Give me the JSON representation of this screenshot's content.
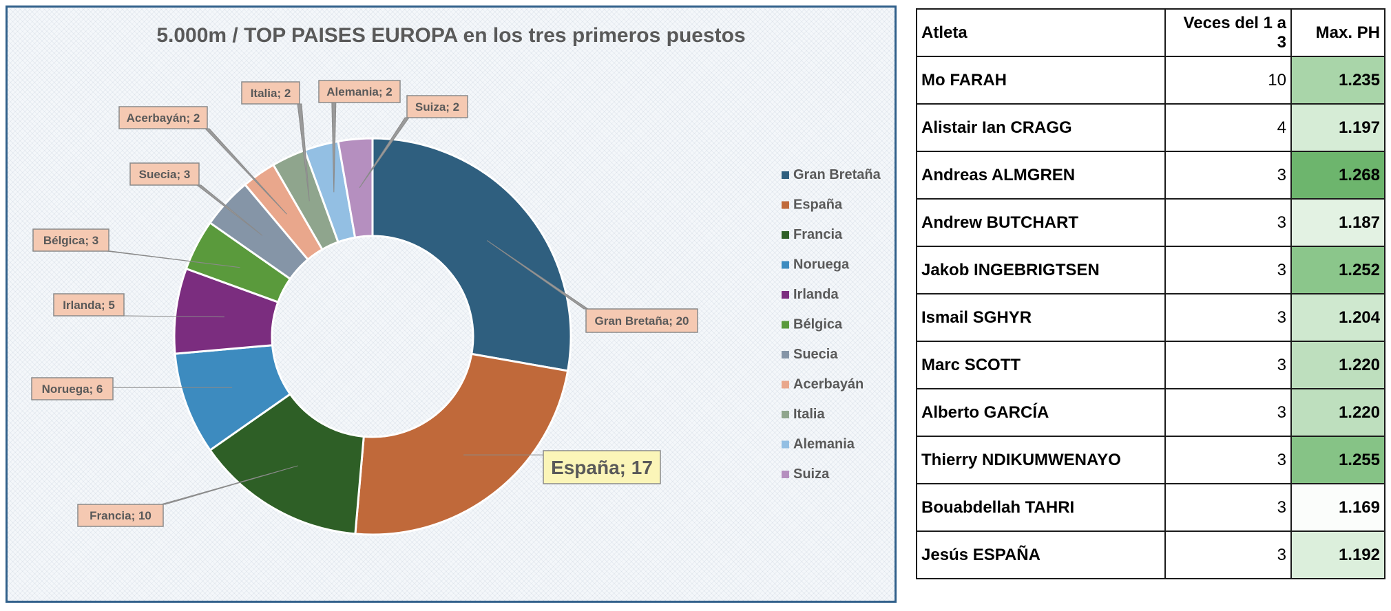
{
  "chart_data": {
    "type": "pie",
    "donut": true,
    "title": "5.000m / TOP  PAISES EUROPA en los tres primeros puestos",
    "legend_position": "right",
    "slices": [
      {
        "label": "Gran Bretaña",
        "value": 20,
        "color": "#2f5f7f",
        "data_label": "Gran Bretaña; 20"
      },
      {
        "label": "España",
        "value": 17,
        "color": "#c0693a",
        "data_label": "España; 17"
      },
      {
        "label": "Francia",
        "value": 10,
        "color": "#2e5f26",
        "data_label": "Francia; 10"
      },
      {
        "label": "Noruega",
        "value": 6,
        "color": "#3d8bbf",
        "data_label": "Noruega; 6"
      },
      {
        "label": "Irlanda",
        "value": 5,
        "color": "#7b2d7f",
        "data_label": "Irlanda; 5"
      },
      {
        "label": "Bélgica",
        "value": 3,
        "color": "#5a9a3c",
        "data_label": "Bélgica; 3"
      },
      {
        "label": "Suecia",
        "value": 3,
        "color": "#8595a7",
        "data_label": "Suecia; 3"
      },
      {
        "label": "Acerbayán",
        "value": 2,
        "color": "#e9a78c",
        "data_label": "Acerbayán; 2"
      },
      {
        "label": "Italia",
        "value": 2,
        "color": "#8fa58d",
        "data_label": "Italia; 2"
      },
      {
        "label": "Alemania",
        "value": 2,
        "color": "#93bfe3",
        "data_label": "Alemania; 2"
      },
      {
        "label": "Suiza",
        "value": 2,
        "color": "#b58fbf",
        "data_label": "Suiza; 2"
      }
    ]
  },
  "table": {
    "headers": [
      "Atleta",
      "Veces del 1 a 3",
      "Max. PH"
    ],
    "rows": [
      {
        "name": "Mo FARAH",
        "count": "10",
        "ph": "1.235",
        "ph_color": "#a9d5a9"
      },
      {
        "name": "Alistair Ian CRAGG",
        "count": "4",
        "ph": "1.197",
        "ph_color": "#d6ecd6"
      },
      {
        "name": "Andreas ALMGREN",
        "count": "3",
        "ph": "1.268",
        "ph_color": "#6db56d"
      },
      {
        "name": "Andrew BUTCHART",
        "count": "3",
        "ph": "1.187",
        "ph_color": "#e3f2e3"
      },
      {
        "name": "Jakob INGEBRIGTSEN",
        "count": "3",
        "ph": "1.252",
        "ph_color": "#8bc68b"
      },
      {
        "name": "Ismail SGHYR",
        "count": "3",
        "ph": "1.204",
        "ph_color": "#cfe8cf"
      },
      {
        "name": "Marc SCOTT",
        "count": "3",
        "ph": "1.220",
        "ph_color": "#bedfbe"
      },
      {
        "name": "Alberto GARCÍA",
        "count": "3",
        "ph": "1.220",
        "ph_color": "#bedfbe"
      },
      {
        "name": "Thierry NDIKUMWENAYO",
        "count": "3",
        "ph": "1.255",
        "ph_color": "#86c386"
      },
      {
        "name": "Bouabdellah TAHRI",
        "count": "3",
        "ph": "1.169",
        "ph_color": "#fbfdfb"
      },
      {
        "name": "Jesús ESPAÑA",
        "count": "3",
        "ph": "1.192",
        "ph_color": "#dcefdc"
      }
    ]
  }
}
